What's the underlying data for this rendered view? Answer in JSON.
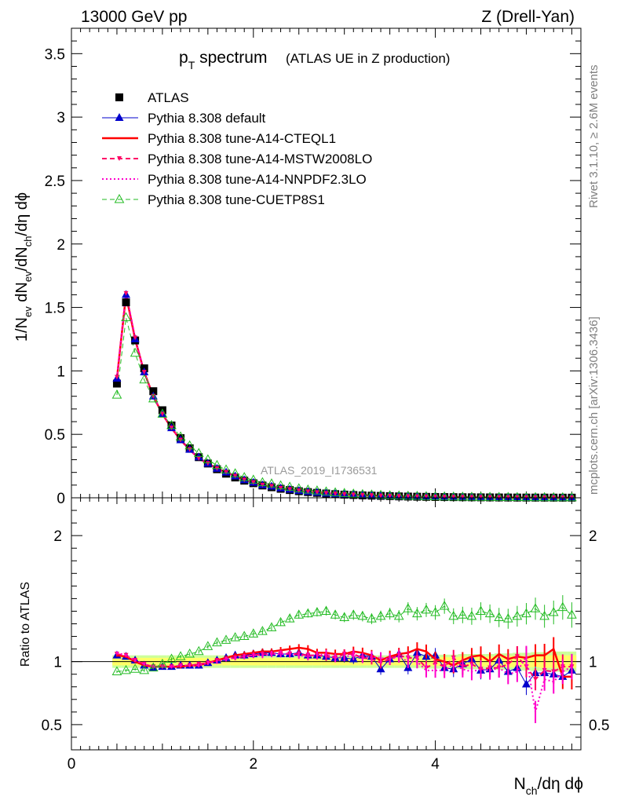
{
  "header": {
    "left": "13000 GeV pp",
    "right": "Z (Drell-Yan)"
  },
  "side_labels": {
    "rivet": "Rivet 3.1.10, ≥ 2.6M events",
    "mcplots": "mcplots.cern.ch [arXiv:1306.3436]"
  },
  "watermark": "ATLAS_2019_I1736531",
  "colors": {
    "atlas": "#000000",
    "default": "#0000cc",
    "cteql1": "#ff0000",
    "mstw": "#ff0066",
    "nnpdf": "#ff00cc",
    "cuetp8s1": "#22bb22",
    "band_inner": "#ffff66",
    "band_outer": "#ccff99"
  },
  "chart_data": [
    {
      "type": "line",
      "panel": "main",
      "title": "p_T spectrum",
      "title_main": "p",
      "title_sub": "T",
      "title_rest": " spectrum",
      "title_note": "(ATLAS UE in Z production)",
      "ylabel": "1/N_ev dN_ev/dN_ch/dη dϕ",
      "ylabel_parts": [
        "1/N",
        "ev",
        " dN",
        "ev",
        "/dN",
        "ch",
        "/dη dϕ"
      ],
      "xlim": [
        0,
        5.6
      ],
      "ylim": [
        0,
        3.7
      ],
      "yticks": [
        0,
        0.5,
        1,
        1.5,
        2,
        2.5,
        3,
        3.5
      ],
      "ytick_labels": [
        "0",
        "0.5",
        "1",
        "1.5",
        "2",
        "2.5",
        "3",
        "3.5"
      ],
      "grid": false,
      "legend_position": "top-left",
      "x": [
        0.5,
        0.6,
        0.7,
        0.8,
        0.9,
        1.0,
        1.1,
        1.2,
        1.3,
        1.4,
        1.5,
        1.6,
        1.7,
        1.8,
        1.9,
        2.0,
        2.1,
        2.2,
        2.3,
        2.4,
        2.5,
        2.6,
        2.7,
        2.8,
        2.9,
        3.0,
        3.1,
        3.2,
        3.3,
        3.4,
        3.5,
        3.6,
        3.7,
        3.8,
        3.9,
        4.0,
        4.1,
        4.2,
        4.3,
        4.4,
        4.5,
        4.6,
        4.7,
        4.8,
        4.9,
        5.0,
        5.1,
        5.2,
        5.3,
        5.4,
        5.5
      ],
      "series": [
        {
          "name": "ATLAS",
          "key": "atlas",
          "values": [
            0.9,
            1.54,
            1.24,
            1.02,
            0.84,
            0.69,
            0.57,
            0.47,
            0.39,
            0.32,
            0.27,
            0.225,
            0.19,
            0.16,
            0.135,
            0.115,
            0.097,
            0.083,
            0.071,
            0.061,
            0.052,
            0.045,
            0.039,
            0.034,
            0.029,
            0.025,
            0.022,
            0.019,
            0.017,
            0.015,
            0.013,
            0.011,
            0.0097,
            0.0085,
            0.0075,
            0.0066,
            0.0058,
            0.0051,
            0.0045,
            0.004,
            0.0035,
            0.0031,
            0.0027,
            0.0024,
            0.0021,
            0.0019,
            0.0017,
            0.0015,
            0.0013,
            0.0011,
            0.001
          ]
        },
        {
          "name": "Pythia 8.308 default",
          "key": "default",
          "values": [
            0.94,
            1.6,
            1.25,
            0.99,
            0.8,
            0.66,
            0.55,
            0.455,
            0.38,
            0.32,
            0.27,
            0.23,
            0.2,
            0.17,
            0.14,
            0.12,
            0.1,
            0.09,
            0.075,
            0.065,
            0.055,
            0.047,
            0.041,
            0.035,
            0.03,
            0.026,
            0.023,
            0.02,
            0.018,
            0.015,
            0.013,
            0.011,
            0.0098,
            0.0087,
            0.0077,
            0.0067,
            0.0058,
            0.0051,
            0.0045,
            0.004,
            0.0035,
            0.0031,
            0.0027,
            0.0024,
            0.0021,
            0.0019,
            0.0017,
            0.0015,
            0.0013,
            0.0011,
            0.001
          ]
        },
        {
          "name": "Pythia 8.308 tune-A14-CTEQL1",
          "key": "cteql1",
          "values": [
            0.94,
            1.6,
            1.25,
            0.99,
            0.8,
            0.66,
            0.55,
            0.455,
            0.38,
            0.31,
            0.27,
            0.23,
            0.2,
            0.17,
            0.14,
            0.12,
            0.1,
            0.09,
            0.075,
            0.065,
            0.055,
            0.048,
            0.041,
            0.035,
            0.03,
            0.026,
            0.023,
            0.02,
            0.018,
            0.015,
            0.013,
            0.011,
            0.0098,
            0.0087,
            0.0077,
            0.0067,
            0.0058,
            0.0051,
            0.0045,
            0.004,
            0.0035,
            0.0031,
            0.0027,
            0.0024,
            0.0021,
            0.0019,
            0.0017,
            0.0015,
            0.0013,
            0.0011,
            0.001
          ]
        },
        {
          "name": "Pythia 8.308 tune-A14-MSTW2008LO",
          "key": "mstw",
          "values": [
            0.95,
            1.61,
            1.26,
            0.99,
            0.8,
            0.66,
            0.55,
            0.455,
            0.38,
            0.31,
            0.27,
            0.23,
            0.2,
            0.17,
            0.14,
            0.12,
            0.1,
            0.09,
            0.075,
            0.065,
            0.055,
            0.047,
            0.041,
            0.035,
            0.03,
            0.026,
            0.023,
            0.02,
            0.018,
            0.015,
            0.013,
            0.011,
            0.0098,
            0.0087,
            0.0077,
            0.0067,
            0.0058,
            0.0051,
            0.0045,
            0.004,
            0.0035,
            0.0031,
            0.0027,
            0.0024,
            0.0021,
            0.0019,
            0.0017,
            0.0015,
            0.0013,
            0.0011,
            0.001
          ]
        },
        {
          "name": "Pythia 8.308 tune-A14-NNPDF2.3LO",
          "key": "nnpdf",
          "values": [
            0.95,
            1.62,
            1.26,
            0.99,
            0.8,
            0.66,
            0.55,
            0.455,
            0.38,
            0.31,
            0.27,
            0.23,
            0.2,
            0.17,
            0.14,
            0.12,
            0.1,
            0.09,
            0.075,
            0.065,
            0.055,
            0.047,
            0.041,
            0.035,
            0.03,
            0.026,
            0.023,
            0.02,
            0.018,
            0.015,
            0.013,
            0.011,
            0.0098,
            0.0087,
            0.0077,
            0.0067,
            0.0058,
            0.0051,
            0.0045,
            0.004,
            0.0035,
            0.0031,
            0.0027,
            0.0024,
            0.0021,
            0.0019,
            0.0017,
            0.0015,
            0.0013,
            0.0011,
            0.001
          ]
        },
        {
          "name": "Pythia 8.308 tune-CUETP8S1",
          "key": "cuetp8s1",
          "values": [
            0.81,
            1.42,
            1.14,
            0.93,
            0.78,
            0.66,
            0.57,
            0.48,
            0.41,
            0.35,
            0.3,
            0.255,
            0.22,
            0.19,
            0.16,
            0.14,
            0.12,
            0.11,
            0.095,
            0.084,
            0.072,
            0.062,
            0.055,
            0.047,
            0.04,
            0.035,
            0.03,
            0.026,
            0.023,
            0.02,
            0.017,
            0.015,
            0.013,
            0.012,
            0.01,
            0.009,
            0.008,
            0.007,
            0.006,
            0.0055,
            0.005,
            0.0045,
            0.004,
            0.0035,
            0.003,
            0.0027,
            0.0024,
            0.0021,
            0.0018,
            0.0016,
            0.0014
          ]
        }
      ]
    },
    {
      "type": "line",
      "panel": "ratio",
      "ylabel": "Ratio to ATLAS",
      "xlabel": "N_ch/dη dϕ",
      "xlabel_parts": [
        "N",
        "ch",
        "/dη dϕ"
      ],
      "xlim": [
        0,
        5.6
      ],
      "ylim": [
        0.3,
        2.3
      ],
      "xticks": [
        0,
        2,
        4
      ],
      "xtick_labels": [
        "0",
        "2",
        "4"
      ],
      "yticks": [
        0.5,
        1,
        2
      ],
      "ytick_labels": [
        "0.5",
        "1",
        "2"
      ],
      "grid": false,
      "reference_line": 1,
      "x": [
        0.5,
        0.6,
        0.7,
        0.8,
        0.9,
        1.0,
        1.1,
        1.2,
        1.3,
        1.4,
        1.5,
        1.6,
        1.7,
        1.8,
        1.9,
        2.0,
        2.1,
        2.2,
        2.3,
        2.4,
        2.5,
        2.6,
        2.7,
        2.8,
        2.9,
        3.0,
        3.1,
        3.2,
        3.3,
        3.4,
        3.5,
        3.6,
        3.7,
        3.8,
        3.9,
        4.0,
        4.1,
        4.2,
        4.3,
        4.4,
        4.5,
        4.6,
        4.7,
        4.8,
        4.9,
        5.0,
        5.1,
        5.2,
        5.3,
        5.4,
        5.5
      ],
      "band_inner": [
        0.03,
        0.03,
        0.03,
        0.03,
        0.03,
        0.03,
        0.03,
        0.03,
        0.03,
        0.03,
        0.03,
        0.03,
        0.03,
        0.03,
        0.03,
        0.03,
        0.03,
        0.03,
        0.03,
        0.03,
        0.03,
        0.03,
        0.03,
        0.03,
        0.03,
        0.03,
        0.03,
        0.03,
        0.03,
        0.03,
        0.03,
        0.03,
        0.03,
        0.03,
        0.035,
        0.035,
        0.035,
        0.035,
        0.04,
        0.04,
        0.04,
        0.04,
        0.04,
        0.045,
        0.045,
        0.045,
        0.045,
        0.05,
        0.05,
        0.05,
        0.05
      ],
      "band_outer": [
        0.05,
        0.05,
        0.05,
        0.05,
        0.05,
        0.05,
        0.05,
        0.05,
        0.05,
        0.05,
        0.05,
        0.05,
        0.05,
        0.05,
        0.05,
        0.05,
        0.05,
        0.05,
        0.05,
        0.05,
        0.05,
        0.05,
        0.05,
        0.05,
        0.05,
        0.05,
        0.05,
        0.05,
        0.05,
        0.05,
        0.05,
        0.05,
        0.05,
        0.05,
        0.055,
        0.055,
        0.055,
        0.055,
        0.06,
        0.06,
        0.06,
        0.06,
        0.065,
        0.065,
        0.07,
        0.07,
        0.075,
        0.075,
        0.08,
        0.08,
        0.08
      ],
      "series": [
        {
          "name": "Pythia 8.308 default",
          "key": "default",
          "values": [
            1.05,
            1.04,
            1.01,
            0.97,
            0.95,
            0.96,
            0.96,
            0.97,
            0.97,
            0.97,
            0.99,
            1.01,
            1.03,
            1.05,
            1.05,
            1.06,
            1.07,
            1.07,
            1.06,
            1.06,
            1.07,
            1.05,
            1.05,
            1.04,
            1.03,
            1.03,
            1.02,
            1.05,
            1.04,
            0.94,
            1.02,
            1.06,
            0.95,
            1.07,
            1.04,
            1.05,
            0.95,
            0.94,
            0.98,
            1.02,
            0.93,
            0.94,
            1.01,
            0.92,
            0.95,
            0.82,
            0.91,
            0.91,
            0.9,
            0.88,
            0.93
          ]
        },
        {
          "name": "Pythia 8.308 tune-A14-CTEQL1",
          "key": "cteql1",
          "values": [
            1.05,
            1.04,
            1.0,
            0.97,
            0.96,
            0.96,
            0.96,
            0.96,
            0.97,
            0.97,
            0.99,
            1.01,
            1.03,
            1.05,
            1.06,
            1.07,
            1.08,
            1.08,
            1.09,
            1.1,
            1.11,
            1.1,
            1.07,
            1.07,
            1.06,
            1.06,
            1.08,
            1.07,
            1.05,
            1.01,
            1.04,
            1.06,
            1.07,
            1.1,
            1.08,
            1.02,
            1.0,
            0.97,
            1.01,
            1.04,
            1.05,
            1.0,
            1.06,
            1.02,
            1.04,
            1.03,
            1.05,
            1.05,
            1.1,
            0.88,
            0.88
          ]
        },
        {
          "name": "Pythia 8.308 tune-A14-MSTW2008LO",
          "key": "mstw",
          "values": [
            1.06,
            1.05,
            1.01,
            0.98,
            0.96,
            0.96,
            0.96,
            0.97,
            0.97,
            0.98,
            0.99,
            1.01,
            1.02,
            1.03,
            1.04,
            1.05,
            1.06,
            1.06,
            1.07,
            1.06,
            1.06,
            1.05,
            1.05,
            1.04,
            1.03,
            1.06,
            1.06,
            1.03,
            1.02,
            0.99,
            1.02,
            1.05,
            1.03,
            1.03,
            0.95,
            0.99,
            0.96,
            1.03,
            0.96,
            0.98,
            0.94,
            0.95,
            0.95,
            0.98,
            1.04,
            0.96,
            0.86,
            0.93,
            0.92,
            0.96,
            0.96
          ]
        },
        {
          "name": "Pythia 8.308 tune-A14-NNPDF2.3LO",
          "key": "nnpdf",
          "values": [
            1.07,
            1.05,
            1.01,
            0.98,
            0.96,
            0.96,
            0.96,
            0.97,
            0.97,
            0.97,
            0.99,
            1.0,
            1.02,
            1.03,
            1.04,
            1.05,
            1.05,
            1.06,
            1.06,
            1.06,
            1.05,
            1.04,
            1.05,
            1.06,
            1.03,
            1.04,
            1.05,
            1.03,
            1.04,
            1.03,
            1.02,
            1.04,
            1.0,
            1.0,
            0.93,
            0.93,
            0.93,
            0.98,
            0.94,
            0.92,
            0.94,
            0.93,
            0.95,
            0.9,
            0.92,
            1.04,
            0.6,
            0.86,
            0.84,
            0.92,
            0.96
          ]
        },
        {
          "name": "Pythia 8.308 tune-CUETP8S1",
          "key": "cuetp8s1",
          "values": [
            0.92,
            0.93,
            0.94,
            0.93,
            0.95,
            0.98,
            1.02,
            1.04,
            1.06,
            1.08,
            1.12,
            1.15,
            1.17,
            1.19,
            1.2,
            1.22,
            1.24,
            1.27,
            1.31,
            1.34,
            1.37,
            1.38,
            1.39,
            1.4,
            1.37,
            1.35,
            1.37,
            1.36,
            1.34,
            1.36,
            1.38,
            1.36,
            1.42,
            1.38,
            1.41,
            1.39,
            1.44,
            1.36,
            1.37,
            1.36,
            1.4,
            1.38,
            1.35,
            1.34,
            1.36,
            1.38,
            1.42,
            1.36,
            1.39,
            1.43,
            1.37
          ]
        }
      ]
    }
  ]
}
